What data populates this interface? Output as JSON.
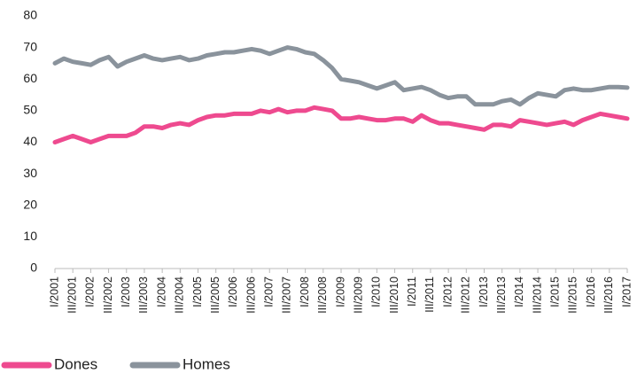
{
  "chart_data": {
    "type": "line",
    "categories": [
      "I/2001",
      null,
      "III/2001",
      null,
      "I/2002",
      null,
      "III/2002",
      null,
      "I/2003",
      null,
      "III/2003",
      null,
      "I/2004",
      null,
      "III/2004",
      null,
      "I/2005",
      null,
      "III/2005",
      null,
      "I/2006",
      null,
      "III/2006",
      null,
      "I/2007",
      null,
      "III/2007",
      null,
      "I/2008",
      null,
      "III/2008",
      null,
      "I/2009",
      null,
      "III/2009",
      null,
      "I/2010",
      null,
      "III/2010",
      null,
      "I/2011",
      null,
      "III/2011",
      null,
      "I/2012",
      null,
      "III/2012",
      null,
      "I/2013",
      null,
      "III/2013",
      null,
      "I/2014",
      null,
      "III/2014",
      null,
      "I/2015",
      null,
      "III/2015",
      null,
      "I/2016",
      null,
      "III/2016",
      null,
      "I/2017"
    ],
    "series": [
      {
        "name": "Dones",
        "color": "#ee4a8f",
        "values": [
          40,
          41,
          42,
          41,
          40,
          41,
          42,
          42,
          42,
          43,
          45,
          45,
          44.5,
          45.5,
          46,
          45.5,
          47,
          48,
          48.5,
          48.5,
          49,
          49,
          49,
          50,
          49.5,
          50.5,
          49.5,
          50,
          50,
          51,
          50.5,
          50,
          47.5,
          47.5,
          48,
          47.5,
          47,
          47,
          47.5,
          47.5,
          46.5,
          48.5,
          47,
          46,
          46,
          45.5,
          45,
          44.5,
          44,
          45.5,
          45.5,
          45,
          47,
          46.5,
          46,
          45.5,
          46,
          46.5,
          45.5,
          47,
          48,
          49,
          48.5,
          48,
          47.5
        ]
      },
      {
        "name": "Homes",
        "color": "#8a939c",
        "values": [
          65,
          66.5,
          65.5,
          65,
          64.5,
          66,
          67,
          64,
          65.5,
          66.5,
          67.5,
          66.5,
          66,
          66.5,
          67,
          66,
          66.5,
          67.5,
          68,
          68.5,
          68.5,
          69,
          69.5,
          69,
          68,
          69,
          70,
          69.5,
          68.5,
          68,
          66,
          63.5,
          60,
          59.5,
          59,
          58,
          57,
          58,
          59,
          56.5,
          57,
          57.5,
          56.5,
          55,
          54,
          54.5,
          54.5,
          52,
          52,
          52,
          53,
          53.5,
          52,
          54,
          55.5,
          55,
          54.5,
          56.5,
          57,
          56.5,
          56.5,
          57,
          57.5,
          57.5,
          57.3
        ]
      }
    ],
    "ylim": [
      0,
      80
    ],
    "yticks": [
      0,
      10,
      20,
      30,
      40,
      50,
      60,
      70,
      80
    ],
    "grid": false
  }
}
